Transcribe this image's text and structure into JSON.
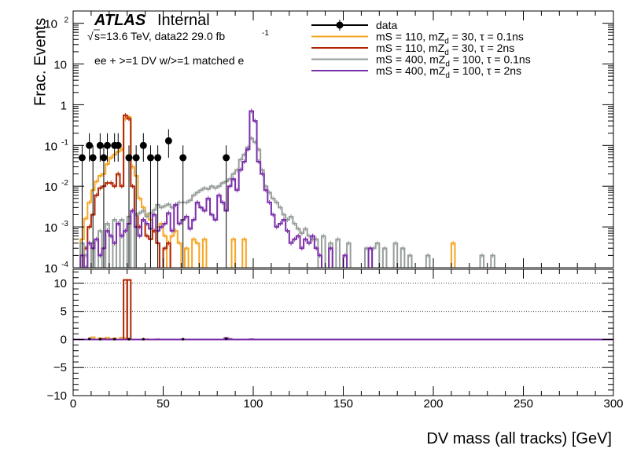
{
  "chart_data": {
    "type": "histogram",
    "xlabel": "DV mass (all tracks) [GeV]",
    "xlim": [
      0,
      300
    ],
    "x_ticks": [
      0,
      50,
      100,
      150,
      200,
      250,
      300
    ],
    "top": {
      "ylabel": "Frac. Events",
      "scale": "log",
      "ylim": [
        0.0001,
        200
      ],
      "y_ticks": [
        {
          "v": 0.0001,
          "t": "10",
          "e": "-4"
        },
        {
          "v": 0.001,
          "t": "10",
          "e": "-3"
        },
        {
          "v": 0.01,
          "t": "10",
          "e": "-2"
        },
        {
          "v": 0.1,
          "t": "10",
          "e": "-1"
        },
        {
          "v": 1,
          "t": "1",
          "e": ""
        },
        {
          "v": 10,
          "t": "10",
          "e": ""
        },
        {
          "v": 100,
          "t": "10",
          "e": "2"
        }
      ]
    },
    "bottom": {
      "scale": "linear",
      "ylim": [
        -10,
        12.5
      ],
      "y_ticks": [
        -10,
        -5,
        0,
        5,
        10
      ],
      "dotted_lines": [
        -5,
        0,
        5,
        10
      ]
    },
    "annotations": {
      "atlas": "ATLAS",
      "internal": "Internal",
      "sqrt_s": "s=13.6 TeV, data22 29.0 fb",
      "lumi_exp": "-1",
      "selection": "ee + >=1 DV w/>=1 matched e"
    },
    "legend_position": "top-right",
    "bin_width": 2,
    "series": [
      {
        "name": "data",
        "style": "points",
        "color": "#000000",
        "points": [
          {
            "x": 5,
            "y": 0.05,
            "lo": 0.0001,
            "hi": 0.1
          },
          {
            "x": 9,
            "y": 0.1,
            "lo": 0.04,
            "hi": 0.2
          },
          {
            "x": 11,
            "y": 0.05,
            "lo": 0.0001,
            "hi": 0.1
          },
          {
            "x": 15,
            "y": 0.1,
            "lo": 0.04,
            "hi": 0.2
          },
          {
            "x": 17,
            "y": 0.05,
            "lo": 0.0001,
            "hi": 0.1
          },
          {
            "x": 19,
            "y": 0.1,
            "lo": 0.04,
            "hi": 0.2
          },
          {
            "x": 23,
            "y": 0.1,
            "lo": 0.04,
            "hi": 0.2
          },
          {
            "x": 25,
            "y": 0.1,
            "lo": 0.04,
            "hi": 0.2
          },
          {
            "x": 31,
            "y": 0.05,
            "lo": 0.0001,
            "hi": 0.1
          },
          {
            "x": 35,
            "y": 0.05,
            "lo": 0.0001,
            "hi": 0.1
          },
          {
            "x": 39,
            "y": 0.1,
            "lo": 0.04,
            "hi": 0.2
          },
          {
            "x": 43,
            "y": 0.05,
            "lo": 0.0001,
            "hi": 0.1
          },
          {
            "x": 47,
            "y": 0.05,
            "lo": 0.0001,
            "hi": 0.1
          },
          {
            "x": 53,
            "y": 0.13,
            "lo": 0.05,
            "hi": 0.25
          },
          {
            "x": 61,
            "y": 0.05,
            "lo": 0.0001,
            "hi": 0.1
          },
          {
            "x": 85,
            "y": 0.05,
            "lo": 0.0001,
            "hi": 0.1
          }
        ],
        "ratio_points": [
          {
            "x": 9,
            "y": 0.1
          },
          {
            "x": 15,
            "y": 0.05
          },
          {
            "x": 23,
            "y": 0.05
          },
          {
            "x": 31,
            "y": 0.05
          },
          {
            "x": 39,
            "y": 0.05
          },
          {
            "x": 61,
            "y": 0.05
          },
          {
            "x": 85,
            "y": 0.15
          }
        ]
      },
      {
        "name": "mS = 110, mZ_d = 30, τ = 0.1ns",
        "label_parts": [
          "mS = 110, mZ",
          "d",
          " = 30, τ = 0.1ns"
        ],
        "style": "step",
        "color": "#f5a623",
        "bins": [
          [
            4,
            0.0005
          ],
          [
            6,
            0.0016
          ],
          [
            8,
            0.004
          ],
          [
            10,
            0.008
          ],
          [
            12,
            0.013
          ],
          [
            14,
            0.018
          ],
          [
            16,
            0.02
          ],
          [
            18,
            0.035
          ],
          [
            20,
            0.05
          ],
          [
            22,
            0.06
          ],
          [
            24,
            0.07
          ],
          [
            26,
            0.08
          ],
          [
            28,
            0.45
          ],
          [
            30,
            0.5
          ],
          [
            32,
            0.03
          ],
          [
            34,
            0.018
          ],
          [
            36,
            0.005
          ],
          [
            38,
            0.003
          ],
          [
            40,
            0.002
          ],
          [
            42,
            0.0015
          ],
          [
            44,
            0.0008
          ],
          [
            46,
            0.001
          ],
          [
            48,
            0.0012
          ],
          [
            50,
            0.0006
          ],
          [
            54,
            0.0006
          ],
          [
            56,
            0.0008
          ],
          [
            58,
            0.0004
          ],
          [
            62,
            0.0003
          ],
          [
            66,
            0.0005
          ],
          [
            68,
            0.0004
          ],
          [
            72,
            0.0005
          ],
          [
            88,
            0.0005
          ],
          [
            94,
            0.0005
          ],
          [
            210,
            0.0004
          ]
        ],
        "ratio_bins": [
          [
            10,
            0.4
          ],
          [
            14,
            0.2
          ],
          [
            18,
            0.3
          ],
          [
            22,
            0.2
          ],
          [
            26,
            0.3
          ],
          [
            28,
            0.2
          ],
          [
            30,
            0.1
          ],
          [
            40,
            0.05
          ],
          [
            84,
            0.1
          ]
        ]
      },
      {
        "name": "mS = 110, mZ_d = 30, τ = 2ns",
        "label_parts": [
          "mS = 110, mZ",
          "d",
          " = 30, τ = 2ns"
        ],
        "style": "step",
        "color": "#b22400",
        "bins": [
          [
            6,
            0.0003
          ],
          [
            8,
            0.001
          ],
          [
            10,
            0.002
          ],
          [
            12,
            0.006
          ],
          [
            14,
            0.009
          ],
          [
            16,
            0.01
          ],
          [
            18,
            0.012
          ],
          [
            20,
            0.012
          ],
          [
            22,
            0.01
          ],
          [
            24,
            0.02
          ],
          [
            26,
            0.01
          ],
          [
            28,
            0.55
          ],
          [
            30,
            0.45
          ],
          [
            32,
            0.01
          ],
          [
            34,
            0.002
          ],
          [
            36,
            0.001
          ],
          [
            38,
            0.0015
          ],
          [
            40,
            0.0006
          ],
          [
            42,
            0.0005
          ],
          [
            44,
            0.0008
          ],
          [
            46,
            0.0004
          ],
          [
            50,
            0.0003
          ],
          [
            52,
            0.0004
          ]
        ],
        "ratio_bins": [
          [
            28,
            10.6
          ],
          [
            30,
            10.6
          ],
          [
            16,
            0.1
          ],
          [
            20,
            0.05
          ]
        ]
      },
      {
        "name": "mS = 400, mZ_d = 100, τ = 0.1ns",
        "label_parts": [
          "mS = 400, mZ",
          "d",
          " = 100, τ = 0.1ns"
        ],
        "style": "step",
        "color": "#969e9a",
        "bins": [
          [
            4,
            0.0004
          ],
          [
            6,
            0.0002
          ],
          [
            10,
            0.0004
          ],
          [
            14,
            0.0008
          ],
          [
            18,
            0.0012
          ],
          [
            22,
            0.0015
          ],
          [
            26,
            0.0015
          ],
          [
            30,
            0.0018
          ],
          [
            34,
            0.002
          ],
          [
            36,
            0.0022
          ],
          [
            38,
            0.0025
          ],
          [
            40,
            0.0018
          ],
          [
            42,
            0.0022
          ],
          [
            44,
            0.0026
          ],
          [
            46,
            0.0035
          ],
          [
            48,
            0.003
          ],
          [
            50,
            0.0033
          ],
          [
            52,
            0.0036
          ],
          [
            54,
            0.003
          ],
          [
            56,
            0.0035
          ],
          [
            58,
            0.004
          ],
          [
            60,
            0.004
          ],
          [
            62,
            0.004
          ],
          [
            64,
            0.0045
          ],
          [
            66,
            0.006
          ],
          [
            68,
            0.007
          ],
          [
            70,
            0.008
          ],
          [
            72,
            0.009
          ],
          [
            74,
            0.0085
          ],
          [
            76,
            0.01
          ],
          [
            78,
            0.009
          ],
          [
            80,
            0.01
          ],
          [
            82,
            0.012
          ],
          [
            84,
            0.013
          ],
          [
            86,
            0.015
          ],
          [
            88,
            0.02
          ],
          [
            90,
            0.025
          ],
          [
            92,
            0.045
          ],
          [
            94,
            0.06
          ],
          [
            96,
            0.09
          ],
          [
            98,
            0.15
          ],
          [
            100,
            0.12
          ],
          [
            102,
            0.08
          ],
          [
            104,
            0.025
          ],
          [
            106,
            0.01
          ],
          [
            108,
            0.007
          ],
          [
            110,
            0.005
          ],
          [
            112,
            0.004
          ],
          [
            114,
            0.003
          ],
          [
            116,
            0.002
          ],
          [
            118,
            0.0015
          ],
          [
            120,
            0.0018
          ],
          [
            122,
            0.0012
          ],
          [
            124,
            0.0009
          ],
          [
            126,
            0.0007
          ],
          [
            128,
            0.0009
          ],
          [
            130,
            0.0006
          ],
          [
            132,
            0.0005
          ],
          [
            134,
            0.0005
          ],
          [
            138,
            0.0006
          ],
          [
            142,
            0.0004
          ],
          [
            146,
            0.0005
          ],
          [
            152,
            0.0004
          ],
          [
            162,
            0.0003
          ],
          [
            166,
            0.0003
          ],
          [
            168,
            0.0004
          ],
          [
            172,
            0.0003
          ],
          [
            178,
            0.0004
          ],
          [
            182,
            0.0003
          ],
          [
            186,
            0.0002
          ],
          [
            196,
            0.0002
          ],
          [
            226,
            0.0002
          ],
          [
            232,
            0.0002
          ]
        ],
        "ratio_bins": [
          [
            10,
            0.05
          ],
          [
            46,
            0.05
          ],
          [
            60,
            0.05
          ],
          [
            84,
            0.05
          ]
        ]
      },
      {
        "name": "mS = 400, mZ_d = 100, τ = 2ns",
        "label_parts": [
          "mS = 400, mZ",
          "d",
          " = 100, τ = 2ns"
        ],
        "style": "step",
        "color": "#7b2fa8",
        "bins": [
          [
            4,
            0.0002
          ],
          [
            6,
            0.0001
          ],
          [
            8,
            0.0004
          ],
          [
            10,
            0.0003
          ],
          [
            12,
            0.0005
          ],
          [
            14,
            0.0002
          ],
          [
            16,
            0.0003
          ],
          [
            18,
            0.0008
          ],
          [
            20,
            0.0006
          ],
          [
            22,
            0.0004
          ],
          [
            24,
            0.0012
          ],
          [
            26,
            0.0006
          ],
          [
            28,
            0.0008
          ],
          [
            30,
            0.0012
          ],
          [
            32,
            0.0025
          ],
          [
            34,
            0.001
          ],
          [
            36,
            0.0006
          ],
          [
            38,
            0.0015
          ],
          [
            40,
            0.0012
          ],
          [
            42,
            0.0009
          ],
          [
            44,
            0.002
          ],
          [
            46,
            0.0008
          ],
          [
            48,
            0.001
          ],
          [
            50,
            0.0012
          ],
          [
            52,
            0.0022
          ],
          [
            54,
            0.0008
          ],
          [
            56,
            0.0035
          ],
          [
            58,
            0.0012
          ],
          [
            60,
            0.0015
          ],
          [
            62,
            0.0018
          ],
          [
            64,
            0.0009
          ],
          [
            66,
            0.0015
          ],
          [
            68,
            0.004
          ],
          [
            70,
            0.003
          ],
          [
            72,
            0.0025
          ],
          [
            74,
            0.005
          ],
          [
            76,
            0.002
          ],
          [
            78,
            0.0015
          ],
          [
            80,
            0.006
          ],
          [
            82,
            0.004
          ],
          [
            84,
            0.0025
          ],
          [
            86,
            0.01
          ],
          [
            88,
            0.015
          ],
          [
            90,
            0.008
          ],
          [
            92,
            0.025
          ],
          [
            94,
            0.04
          ],
          [
            96,
            0.08
          ],
          [
            98,
            0.7
          ],
          [
            100,
            0.4
          ],
          [
            102,
            0.04
          ],
          [
            104,
            0.02
          ],
          [
            106,
            0.008
          ],
          [
            108,
            0.004
          ],
          [
            110,
            0.002
          ],
          [
            112,
            0.001
          ],
          [
            114,
            0.0012
          ],
          [
            116,
            0.0015
          ],
          [
            118,
            0.0008
          ],
          [
            120,
            0.0004
          ],
          [
            122,
            0.0005
          ],
          [
            124,
            0.0006
          ],
          [
            126,
            0.0003
          ],
          [
            128,
            0.0005
          ],
          [
            130,
            0.0004
          ],
          [
            132,
            0.0006
          ],
          [
            134,
            0.0003
          ],
          [
            136,
            0.0002
          ],
          [
            142,
            0.0003
          ],
          [
            150,
            0.0002
          ],
          [
            164,
            0.0003
          ]
        ],
        "ratio_bins": [
          [
            84,
            0.25
          ],
          [
            86,
            0.1
          ],
          [
            98,
            0.05
          ]
        ]
      }
    ]
  }
}
